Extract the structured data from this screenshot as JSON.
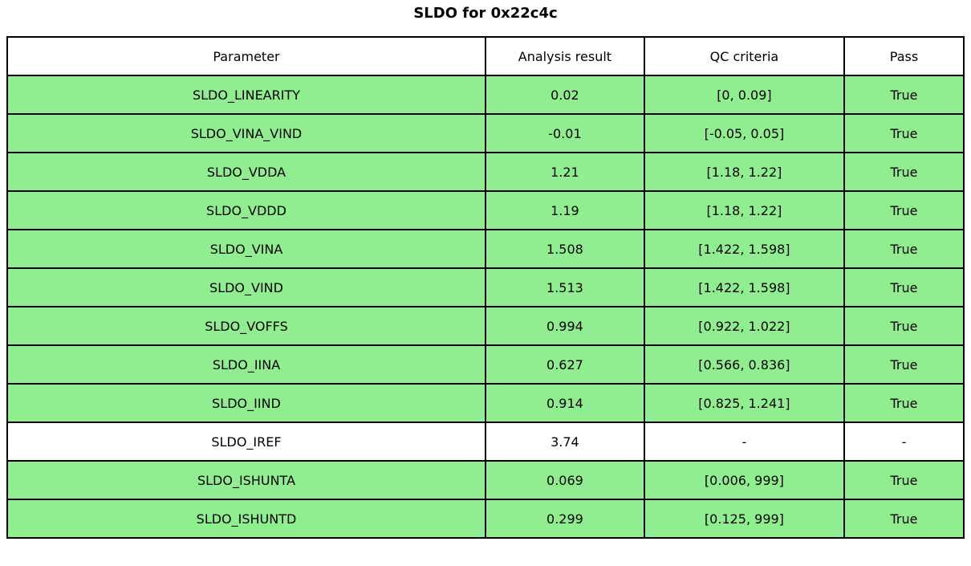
{
  "chart_data": {
    "type": "table",
    "title": "SLDO for 0x22c4c",
    "columns": [
      "Parameter",
      "Analysis result",
      "QC criteria",
      "Pass"
    ],
    "rows": [
      {
        "parameter": "SLDO_LINEARITY",
        "result": "0.02",
        "criteria": "[0, 0.09]",
        "pass": "True",
        "highlight": true
      },
      {
        "parameter": "SLDO_VINA_VIND",
        "result": "-0.01",
        "criteria": "[-0.05, 0.05]",
        "pass": "True",
        "highlight": true
      },
      {
        "parameter": "SLDO_VDDA",
        "result": "1.21",
        "criteria": "[1.18, 1.22]",
        "pass": "True",
        "highlight": true
      },
      {
        "parameter": "SLDO_VDDD",
        "result": "1.19",
        "criteria": "[1.18, 1.22]",
        "pass": "True",
        "highlight": true
      },
      {
        "parameter": "SLDO_VINA",
        "result": "1.508",
        "criteria": "[1.422, 1.598]",
        "pass": "True",
        "highlight": true
      },
      {
        "parameter": "SLDO_VIND",
        "result": "1.513",
        "criteria": "[1.422, 1.598]",
        "pass": "True",
        "highlight": true
      },
      {
        "parameter": "SLDO_VOFFS",
        "result": "0.994",
        "criteria": "[0.922, 1.022]",
        "pass": "True",
        "highlight": true
      },
      {
        "parameter": "SLDO_IINA",
        "result": "0.627",
        "criteria": "[0.566, 0.836]",
        "pass": "True",
        "highlight": true
      },
      {
        "parameter": "SLDO_IIND",
        "result": "0.914",
        "criteria": "[0.825, 1.241]",
        "pass": "True",
        "highlight": true
      },
      {
        "parameter": "SLDO_IREF",
        "result": "3.74",
        "criteria": "-",
        "pass": "-",
        "highlight": false
      },
      {
        "parameter": "SLDO_ISHUNTA",
        "result": "0.069",
        "criteria": "[0.006, 999]",
        "pass": "True",
        "highlight": true
      },
      {
        "parameter": "SLDO_ISHUNTD",
        "result": "0.299",
        "criteria": "[0.125, 999]",
        "pass": "True",
        "highlight": true
      }
    ],
    "layout": {
      "legend": "none",
      "grid": "cell-borders",
      "column_width_fractions": [
        0.5,
        0.166,
        0.209,
        0.125
      ]
    }
  },
  "colors": {
    "pass_row_background": "#90ee90",
    "neutral_row_background": "#ffffff",
    "header_background": "#ffffff",
    "border": "#000000",
    "text": "#000000"
  }
}
